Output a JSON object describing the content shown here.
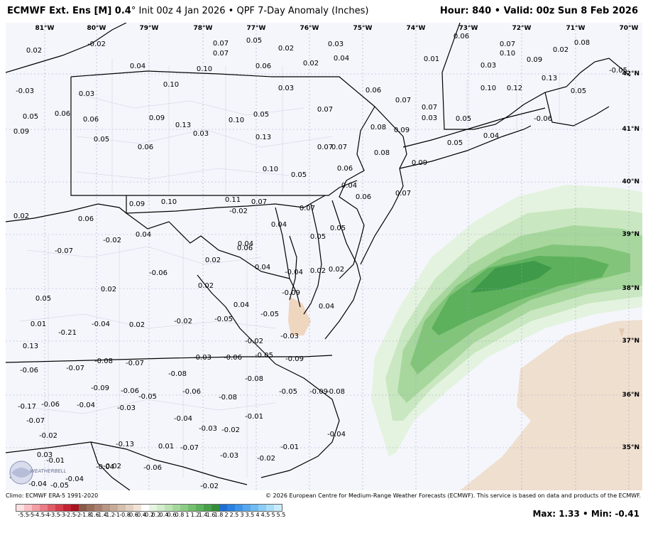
{
  "header": {
    "model": "ECMWF Ext. Ens [M] 0.4",
    "init": "° Init 00z 4 Jan 2026 • QPF 7-Day Anomaly (Inches)",
    "hour_label": "Hour: 840 • Valid: 00z Sun 8 Feb 2026"
  },
  "lon_labels": [
    "81°W",
    "80°W",
    "79°W",
    "78°W",
    "77°W",
    "76°W",
    "75°W",
    "74°W",
    "73°W",
    "72°W",
    "71°W",
    "70°W"
  ],
  "lat_labels": [
    "42°N",
    "41°N",
    "40°N",
    "39°N",
    "38°N",
    "37°N",
    "36°N",
    "35°N"
  ],
  "values": [
    "0.02",
    "-0.02",
    "0.04",
    "0.10",
    "0.07",
    "0.07",
    "0.05",
    "0.02",
    "0.06",
    "0.03",
    "0.04",
    "0.02",
    "0.01",
    "0.06",
    "0.07",
    "0.10",
    "0.02",
    "0.08",
    "0.03",
    "0.09",
    "-0.05",
    "-0.03",
    "0.03",
    "0.10",
    "0.03",
    "0.06",
    "0.07",
    "0.10",
    "0.12",
    "0.13",
    "0.05",
    "0.05",
    "0.06",
    "0.06",
    "0.09",
    "0.13",
    "0.10",
    "0.05",
    "0.07",
    "0.07",
    "-0.06",
    "0.09",
    "0.05",
    "0.06",
    "0.03",
    "0.13",
    "0.07",
    "0.03",
    "0.05",
    "0.04",
    "0.05",
    "0.08",
    "0.07",
    "0.08",
    "0.09",
    "0.09",
    "0.07",
    "0.06",
    "0.05",
    "0.10",
    "0.04",
    "0.06",
    "0.09",
    "0.10",
    "0.11",
    "0.07",
    "-0.02",
    "0.07",
    "0.02",
    "0.06",
    "0.04",
    "0.05",
    "0.05",
    "-0.02",
    "0.04",
    "0.04",
    "-0.07",
    "0.02",
    "0.06",
    "0.04",
    "-0.04",
    "0.02",
    "0.02",
    "-0.06",
    "0.02",
    "0.04",
    "0.02",
    "0.05",
    "0.01",
    "0.13",
    "0.04",
    "-0.05",
    "-0.03",
    "-0.09",
    "-0.21",
    "-0.04",
    "0.02",
    "-0.02",
    "-0.05",
    "-0.02",
    "-0.05",
    "-0.09",
    "-0.03",
    "-0.06",
    "-0.06",
    "-0.07",
    "-0.08",
    "-0.07",
    "-0.08",
    "-0.08",
    "-0.05",
    "-0.09",
    "-0.06",
    "-0.05",
    "-0.06",
    "-0.08",
    "-0.09",
    "-0.08",
    "-0.06",
    "-0.17",
    "-0.04",
    "-0.03",
    "-0.01",
    "-0.04",
    "-0.07",
    "-0.03",
    "-0.02",
    "-0.04",
    "-0.02",
    "-0.13",
    "0.01",
    "-0.07",
    "-0.03",
    "-0.01",
    "0.03",
    "-0.04",
    "-0.01",
    "-0.02",
    "-0.06",
    "-0.02",
    "-0.02",
    "-0.04",
    "-0.04",
    "-0.05",
    "-0.02"
  ],
  "footer": {
    "climo": "Climo: ECMWF ERA-5 1991-2020",
    "copyright": "© 2026 European Centre for Medium-Range Weather Forecasts (ECMWF). This service is based on data and products of the ECMWF.",
    "maxmin": "Max: 1.33 • Min: -0.41"
  },
  "colorbar": {
    "ticks": [
      "-5.5",
      "-5",
      "-4.5",
      "-4",
      "-3.5",
      "-3",
      "-2.5",
      "-2",
      "-1.8",
      "-1.6",
      "-1.4",
      "-1.2",
      "-1",
      "-0.8",
      "-0.6",
      "-0.4",
      "-0.2",
      "0.2",
      "0.4",
      "0.6",
      "0.8",
      "1",
      "1.2",
      "1.4",
      "1.6",
      "1.8",
      "2",
      "2.5",
      "3",
      "3.5",
      "4",
      "4.5",
      "5",
      "5.5"
    ],
    "colors": [
      "#fde0e2",
      "#f8c0c4",
      "#f29ea4",
      "#ea7d86",
      "#e05d68",
      "#d43e4c",
      "#c22434",
      "#a81422",
      "#8a5a4a",
      "#9a6c5a",
      "#a98070",
      "#b89584",
      "#c7aa98",
      "#d5bfae",
      "#e3d2c2",
      "#f0e4d8",
      "#ffffff",
      "#e6f5e2",
      "#d3edcc",
      "#bde3b5",
      "#a5d89c",
      "#8dcc85",
      "#74bf6e",
      "#5cb25a",
      "#47a14a",
      "#358d3c",
      "#1f6fd0",
      "#2b82df",
      "#3f95e8",
      "#57a8ee",
      "#6fbbf2",
      "#8ccdf6",
      "#a9def9",
      "#c8ecfb"
    ]
  },
  "logo_text": "WEATHERBELL"
}
